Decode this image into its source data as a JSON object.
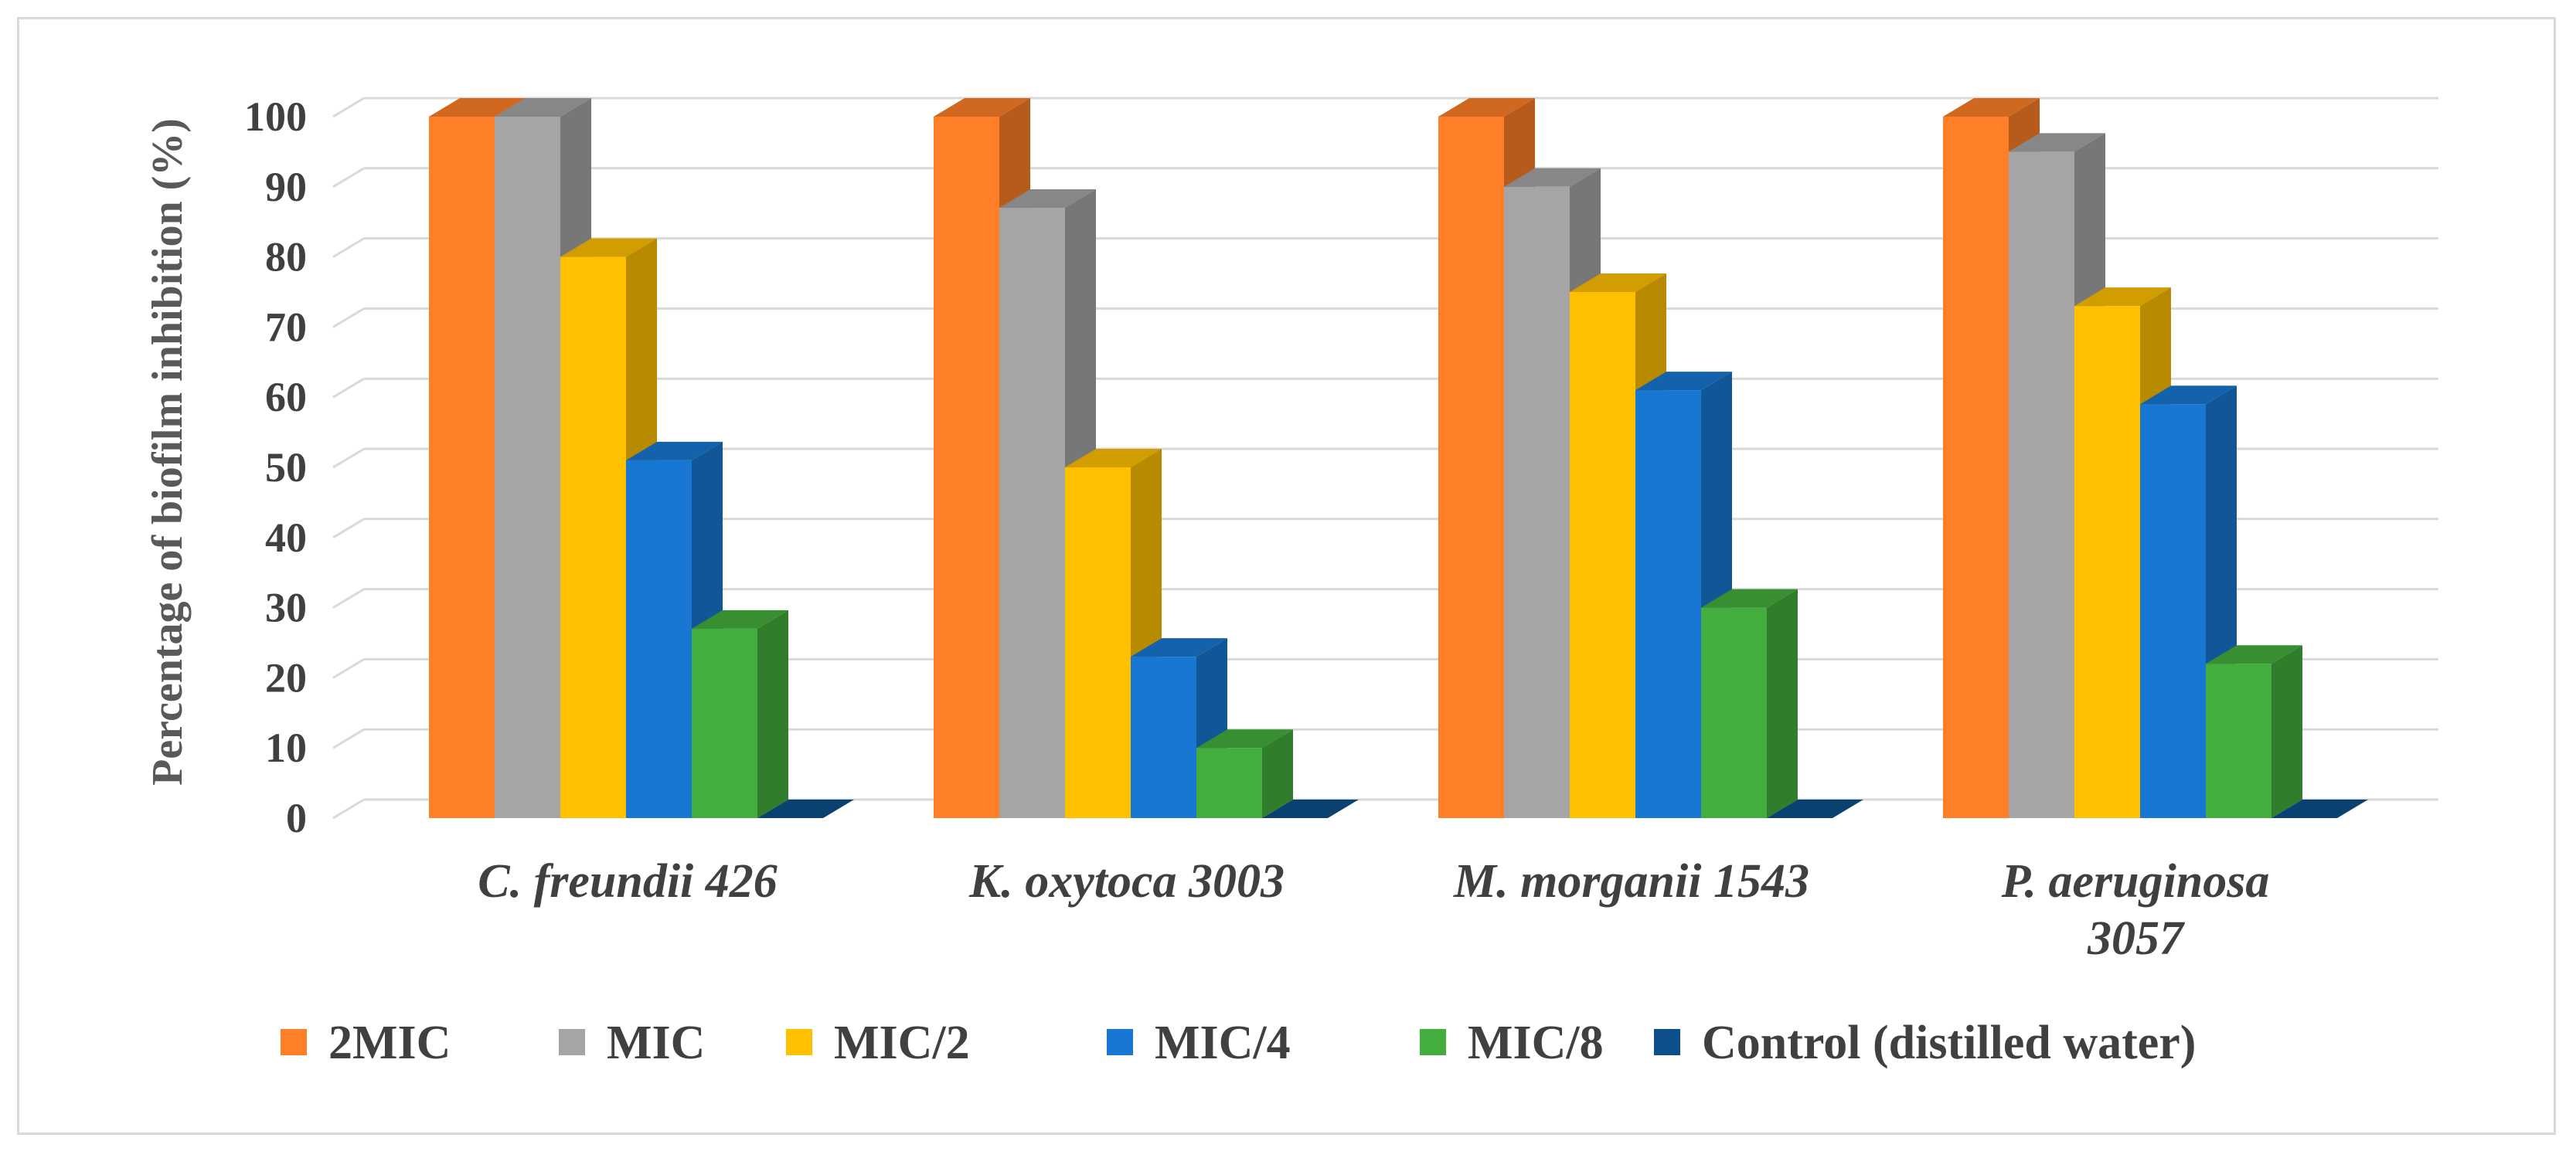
{
  "chart_data": {
    "type": "bar",
    "style": "3d-clustered-column",
    "ylabel": "Percentage of biofilm inhibition (%)",
    "ylim": [
      0,
      100
    ],
    "yticks": [
      "0",
      "10",
      "20",
      "30",
      "40",
      "50",
      "60",
      "70",
      "80",
      "90",
      "100"
    ],
    "grid": true,
    "legend_position": "bottom",
    "categories": [
      [
        "C. freundii 426"
      ],
      [
        "K. oxytoca 3003"
      ],
      [
        "M. morganii 1543"
      ],
      [
        "P. aeruginosa",
        "3057"
      ]
    ],
    "series": [
      {
        "name": "2MIC",
        "color": "#fe7f27",
        "values": [
          100,
          100,
          100,
          100
        ]
      },
      {
        "name": "MIC",
        "color": "#a5a5a5",
        "values": [
          100,
          87,
          90,
          95
        ]
      },
      {
        "name": "MIC/2",
        "color": "#ffc000",
        "values": [
          80,
          50,
          75,
          73
        ]
      },
      {
        "name": "MIC/4",
        "color": "#1877d2",
        "values": [
          51,
          23,
          61,
          59
        ]
      },
      {
        "name": "MIC/8",
        "color": "#43ae3d",
        "values": [
          27,
          10,
          30,
          22
        ]
      },
      {
        "name": "Control (distilled water)",
        "color": "#0d4f8a",
        "values": [
          0,
          0,
          0,
          0
        ]
      }
    ]
  }
}
